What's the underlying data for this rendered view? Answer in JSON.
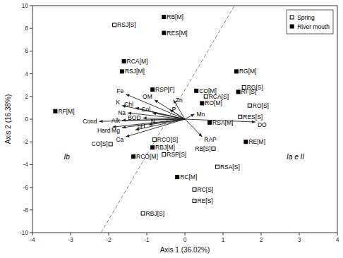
{
  "chart_data": {
    "type": "scatter",
    "xlabel": "Axis 1 (36.02%)",
    "ylabel": "Axis 2 (16.38%)",
    "xlim": [
      -4,
      4
    ],
    "ylim": [
      -10,
      10
    ],
    "xticks": [
      -4,
      -3,
      -2,
      -1,
      0,
      1,
      2,
      3,
      4
    ],
    "yticks": [
      -10,
      -8,
      -6,
      -4,
      -2,
      0,
      2,
      4,
      6,
      8,
      10
    ],
    "grid": false,
    "legend": "upper right",
    "series": [
      {
        "name": "Spring",
        "marker": "open-square",
        "labels": [
          "RSJ[S]",
          "RG[S]",
          "RCA[S]",
          "RO[S]",
          "RES[S]",
          "RCO[S]",
          "CO[S]",
          "RSP[S]",
          "RB[S]",
          "RSA[S]",
          "RC[S]",
          "RE[S]",
          "RBJ[S]"
        ],
        "x": [
          -1.85,
          1.55,
          0.55,
          1.7,
          1.45,
          -0.8,
          -1.95,
          -0.55,
          0.75,
          0.85,
          0.25,
          0.25,
          -1.1
        ],
        "y": [
          8.3,
          2.8,
          2.0,
          1.2,
          0.2,
          -1.8,
          -2.2,
          -3.1,
          -2.6,
          -4.2,
          -6.2,
          -7.2,
          -8.3
        ]
      },
      {
        "name": "River mouth",
        "marker": "filled-square",
        "labels": [
          "RB[M]",
          "RES[M]",
          "RCA[M]",
          "RSJ[M]",
          "RSP[F]",
          "RG[M]",
          "RF[S]",
          "RF[M]",
          "RO[M]",
          "RSA[M]",
          "RE[M]",
          "RBJ[M]",
          "RCO[M]",
          "RC[M]",
          "CO[M]"
        ],
        "x": [
          -0.55,
          -0.55,
          -1.6,
          -1.65,
          -0.85,
          1.35,
          1.4,
          -3.4,
          0.45,
          0.65,
          1.6,
          -0.85,
          -1.35,
          -0.2,
          0.3
        ],
        "y": [
          9.0,
          7.6,
          5.1,
          4.2,
          2.6,
          4.2,
          2.4,
          0.7,
          1.4,
          -0.3,
          -2.0,
          -2.5,
          -3.3,
          -5.1,
          2.5
        ]
      }
    ],
    "arrows": {
      "labels": [
        "Fe",
        "OM",
        "Zn",
        "Chl",
        "Col",
        "P",
        "K",
        "Na",
        "BOD",
        "Cond",
        "Alk",
        "Hard",
        "Mg",
        "Ca",
        "pH",
        "N",
        "Mn",
        "RAP",
        "DO"
      ],
      "x": [
        -1.55,
        -0.8,
        -0.3,
        -1.3,
        -0.85,
        -0.4,
        -1.65,
        -1.5,
        -1.1,
        -2.25,
        -1.65,
        -1.9,
        -1.65,
        -1.55,
        -1.3,
        -0.95,
        0.25,
        0.45,
        1.85
      ],
      "y": [
        2.2,
        1.7,
        1.7,
        1.0,
        0.55,
        0.85,
        1.2,
        0.55,
        0.1,
        -0.2,
        -0.1,
        -0.7,
        -0.75,
        -1.55,
        -0.95,
        -0.5,
        0.45,
        -1.55,
        -0.25
      ]
    },
    "reference_line": {
      "x": [
        -2.2,
        1.3
      ],
      "y": [
        -10,
        10
      ],
      "line_style": "dashed"
    },
    "annotations": [
      {
        "text": "Ib",
        "x": -3.1,
        "y": -3.3
      },
      {
        "text": "Ia e II",
        "x": 2.9,
        "y": -3.3
      }
    ]
  }
}
